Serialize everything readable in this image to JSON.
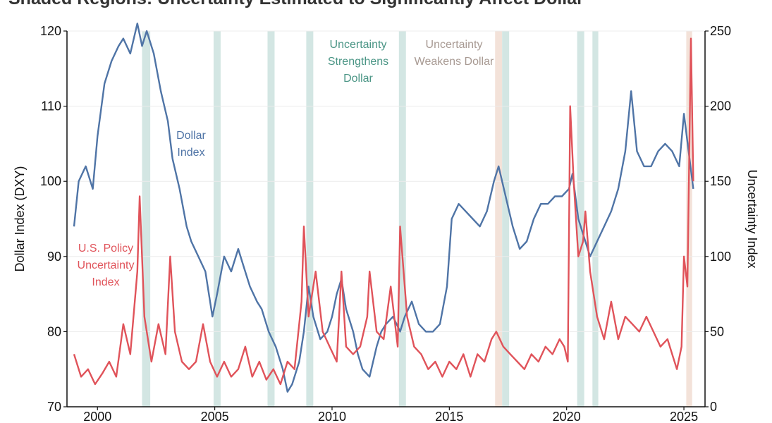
{
  "title": "Shaded Regions: Uncertainty Estimated to Significantly Affect Dollar",
  "chart_data": {
    "type": "line",
    "title": "Shaded Regions: Uncertainty Estimated to Significantly Affect Dollar",
    "ylabel": "Dollar Index (DXY)",
    "y2label": "Uncertainty Index",
    "xlim": [
      1998.7,
      2025.9
    ],
    "ylim": [
      70,
      120
    ],
    "y2lim": [
      0,
      250
    ],
    "x_ticks": [
      "2000",
      "2005",
      "2010",
      "2015",
      "2020",
      "2025"
    ],
    "y_ticks": [
      "70",
      "80",
      "90",
      "100",
      "110",
      "120"
    ],
    "y2_ticks": [
      "0",
      "50",
      "100",
      "150",
      "200",
      "250"
    ],
    "grid": "horizontal",
    "colors": {
      "dollar": "#4f74a6",
      "uncertainty": "#e0535a",
      "strengthen_region": "#d3e6e3",
      "weaken_region": "#f3e2d9",
      "strengthen_text": "#4a9585",
      "weaken_text": "#a89a93",
      "dollar_text": "#4f74a6",
      "uncertainty_text": "#e0535a"
    },
    "annotations": {
      "dollar": [
        "Dollar",
        "Index"
      ],
      "uncertainty": [
        "U.S. Policy",
        "Uncertainty",
        "Index"
      ],
      "strengthen": [
        "Uncertainty",
        "Strengthens",
        "Dollar"
      ],
      "weaken": [
        "Uncertainty",
        "Weakens Dollar"
      ]
    },
    "strengthen_regions": [
      [
        2001.9,
        2002.25
      ],
      [
        2004.95,
        2005.25
      ],
      [
        2007.25,
        2007.55
      ],
      [
        2008.9,
        2009.2
      ],
      [
        2012.85,
        2013.15
      ],
      [
        2017.25,
        2017.55
      ],
      [
        2020.45,
        2020.75
      ],
      [
        2021.1,
        2021.35
      ]
    ],
    "weaken_regions": [
      [
        2016.95,
        2017.25
      ],
      [
        2025.1,
        2025.35
      ]
    ],
    "series": [
      {
        "name": "Dollar Index",
        "axis": "left",
        "x": [
          1999.0,
          1999.2,
          1999.5,
          1999.8,
          2000.0,
          2000.3,
          2000.6,
          2000.9,
          2001.1,
          2001.4,
          2001.7,
          2001.9,
          2002.1,
          2002.4,
          2002.7,
          2003.0,
          2003.2,
          2003.5,
          2003.8,
          2004.0,
          2004.3,
          2004.6,
          2004.9,
          2005.1,
          2005.4,
          2005.7,
          2006.0,
          2006.2,
          2006.5,
          2006.8,
          2007.0,
          2007.3,
          2007.6,
          2007.9,
          2008.1,
          2008.3,
          2008.6,
          2008.8,
          2009.0,
          2009.2,
          2009.5,
          2009.8,
          2010.0,
          2010.2,
          2010.4,
          2010.6,
          2010.9,
          2011.1,
          2011.3,
          2011.6,
          2011.9,
          2012.1,
          2012.3,
          2012.6,
          2012.9,
          2013.1,
          2013.4,
          2013.7,
          2014.0,
          2014.3,
          2014.6,
          2014.9,
          2015.1,
          2015.4,
          2015.7,
          2016.0,
          2016.3,
          2016.6,
          2016.9,
          2017.1,
          2017.4,
          2017.7,
          2018.0,
          2018.3,
          2018.6,
          2018.9,
          2019.2,
          2019.5,
          2019.8,
          2020.1,
          2020.25,
          2020.5,
          2020.8,
          2021.0,
          2021.3,
          2021.6,
          2021.9,
          2022.2,
          2022.5,
          2022.75,
          2023.0,
          2023.3,
          2023.6,
          2023.9,
          2024.2,
          2024.5,
          2024.8,
          2025.0,
          2025.2,
          2025.4
        ],
        "values": [
          94,
          100,
          102,
          99,
          106,
          113,
          116,
          118,
          119,
          117,
          121,
          118,
          120,
          117,
          112,
          108,
          103,
          99,
          94,
          92,
          90,
          88,
          82,
          85,
          90,
          88,
          91,
          89,
          86,
          84,
          83,
          80,
          78,
          75,
          72,
          73,
          76,
          80,
          86,
          82,
          79,
          80,
          82,
          85,
          87,
          83,
          80,
          77,
          75,
          74,
          78,
          80,
          81,
          82,
          80,
          82,
          84,
          81,
          80,
          80,
          81,
          86,
          95,
          97,
          96,
          95,
          94,
          96,
          100,
          102,
          98,
          94,
          91,
          92,
          95,
          97,
          97,
          98,
          98,
          99,
          101,
          95,
          92,
          90,
          92,
          94,
          96,
          99,
          104,
          112,
          104,
          102,
          102,
          104,
          105,
          104,
          102,
          109,
          104,
          99
        ]
      },
      {
        "name": "U.S. Policy Uncertainty Index",
        "axis": "right",
        "x": [
          1999.0,
          1999.3,
          1999.6,
          1999.9,
          2000.2,
          2000.5,
          2000.8,
          2001.1,
          2001.4,
          2001.7,
          2001.8,
          2002.0,
          2002.3,
          2002.6,
          2002.9,
          2003.1,
          2003.3,
          2003.6,
          2003.9,
          2004.2,
          2004.5,
          2004.8,
          2005.1,
          2005.4,
          2005.7,
          2006.0,
          2006.3,
          2006.6,
          2006.9,
          2007.2,
          2007.5,
          2007.8,
          2008.1,
          2008.4,
          2008.7,
          2008.8,
          2009.0,
          2009.3,
          2009.6,
          2009.9,
          2010.2,
          2010.4,
          2010.6,
          2010.9,
          2011.2,
          2011.5,
          2011.6,
          2011.9,
          2012.2,
          2012.5,
          2012.8,
          2012.9,
          2013.2,
          2013.5,
          2013.8,
          2014.1,
          2014.4,
          2014.7,
          2015.0,
          2015.3,
          2015.6,
          2015.9,
          2016.2,
          2016.5,
          2016.8,
          2017.0,
          2017.3,
          2017.6,
          2017.9,
          2018.2,
          2018.5,
          2018.8,
          2019.1,
          2019.4,
          2019.7,
          2019.9,
          2020.05,
          2020.15,
          2020.3,
          2020.5,
          2020.7,
          2020.8,
          2021.0,
          2021.3,
          2021.6,
          2021.9,
          2022.2,
          2022.5,
          2022.8,
          2023.1,
          2023.4,
          2023.7,
          2024.0,
          2024.3,
          2024.5,
          2024.7,
          2024.9,
          2025.0,
          2025.15,
          2025.3,
          2025.4
        ],
        "values": [
          35,
          20,
          25,
          15,
          22,
          30,
          20,
          55,
          35,
          90,
          140,
          60,
          30,
          55,
          35,
          100,
          50,
          30,
          25,
          30,
          55,
          30,
          20,
          30,
          20,
          25,
          40,
          20,
          30,
          18,
          25,
          15,
          30,
          25,
          70,
          120,
          60,
          90,
          50,
          40,
          30,
          90,
          40,
          35,
          40,
          60,
          90,
          50,
          45,
          80,
          40,
          120,
          60,
          40,
          35,
          25,
          30,
          20,
          30,
          25,
          35,
          20,
          35,
          30,
          45,
          50,
          40,
          35,
          30,
          25,
          35,
          30,
          40,
          35,
          45,
          40,
          30,
          200,
          150,
          100,
          110,
          130,
          90,
          60,
          45,
          70,
          45,
          60,
          55,
          50,
          60,
          50,
          40,
          45,
          35,
          25,
          40,
          100,
          80,
          245,
          150
        ]
      }
    ]
  }
}
